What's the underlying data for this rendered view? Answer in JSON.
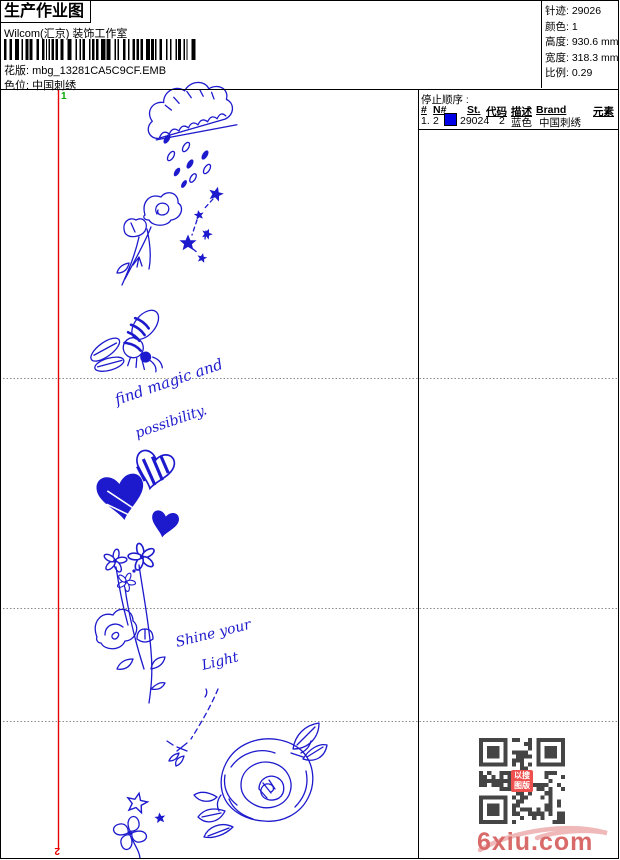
{
  "page": {
    "title": "生产作业图",
    "subtitle": "Wilcom(汇京) 装饰工作室",
    "pattern_label": "花版:",
    "pattern_value": "mbg_13281CA5C9CF.EMB",
    "colorway_label": "色位:",
    "colorway_value": "中国刺绣"
  },
  "info": {
    "stitches_label": "针迹:",
    "stitches_value": "29026",
    "colors_label": "颜色:",
    "colors_value": "1",
    "height_label": "高度:",
    "height_value": "930.6 mm",
    "width_label": "宽度:",
    "width_value": "318.3 mm",
    "scale_label": "比例:",
    "scale_value": "0.29"
  },
  "stop_sequence": {
    "title": "停止顺序 :",
    "columns": [
      "#",
      "N#",
      "St.",
      "代码",
      "描述",
      "Brand",
      "元素"
    ],
    "rows": [
      {
        "idx": "1.",
        "n": "2",
        "swatch_color": "#0000e6",
        "st": "29024",
        "code": "2",
        "desc": "蓝色",
        "brand": "中国刺绣",
        "elements": ""
      }
    ]
  },
  "markers": {
    "start": "1",
    "end": "2"
  },
  "design_texts": {
    "line1": "find magic and",
    "line2": "possibility.",
    "line3": "Shine your",
    "line4": "Light"
  },
  "watermark": {
    "site": "6xiu.com",
    "seal_line1": "以搜",
    "seal_line2": "图版"
  },
  "colors": {
    "design_blue": "#1d1acd",
    "guide_red": "#e60000",
    "marker_green": "#00a800",
    "swatch_blue": "#0000e6",
    "qr_dark": "#454545",
    "watermark_pink": "#d96a6a",
    "swoosh_pink": "#efb9b9",
    "seal_red": "#ee5050"
  }
}
